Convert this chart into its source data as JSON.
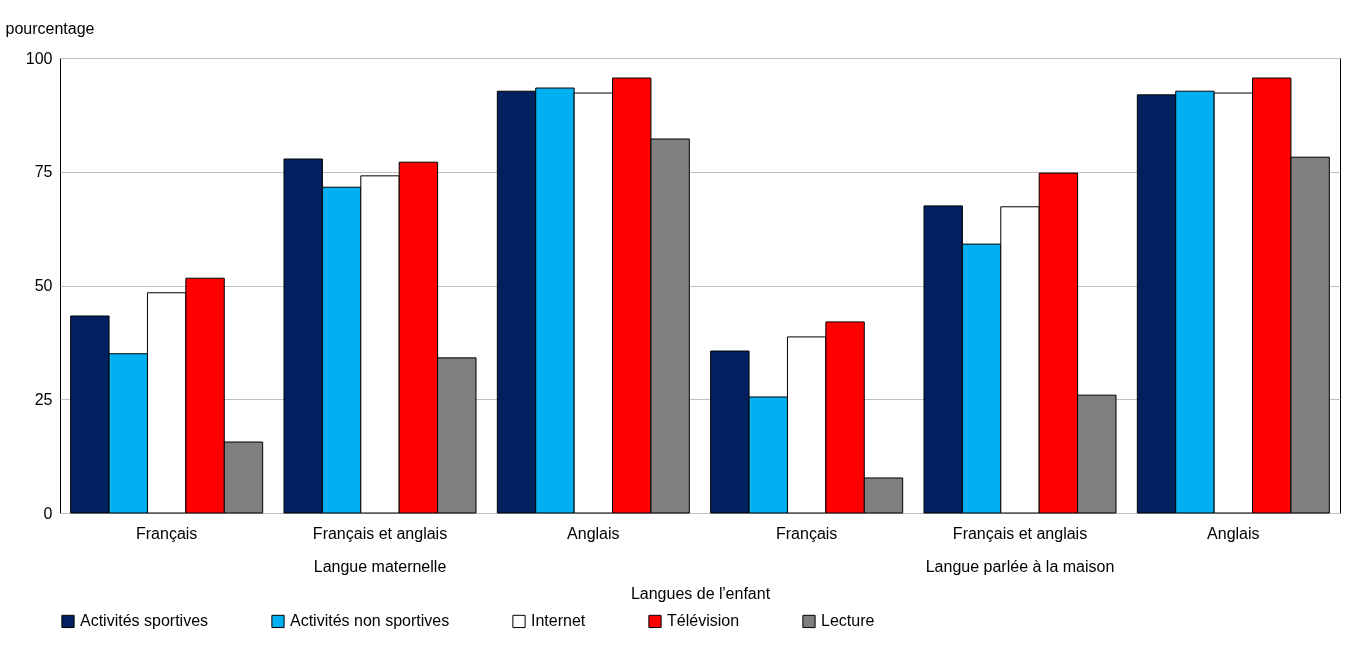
{
  "chart_data": {
    "type": "bar",
    "xlabel": "Langues de l'enfant",
    "ylabel": "pourcentage",
    "categories": [
      "Français",
      "Français et anglais",
      "Anglais",
      "Français",
      "Français et anglais",
      "Anglais"
    ],
    "annotations": [
      "Langue maternelle",
      "Langue parlée à la maison"
    ],
    "series": [
      {
        "name": "Activités sportives",
        "color": "#002060",
        "values": [
          43.3,
          77.8,
          92.7,
          35.6,
          67.5,
          91.9
        ]
      },
      {
        "name": "Activités non sportives",
        "color": "#00b0f0",
        "values": [
          35.0,
          71.6,
          93.4,
          25.5,
          59.1,
          92.7
        ]
      },
      {
        "name": "Internet",
        "color": "#ffffff",
        "values": [
          48.4,
          74.1,
          92.3,
          38.7,
          67.3,
          92.3
        ]
      },
      {
        "name": "Télévision",
        "color": "#ff0000",
        "values": [
          51.6,
          77.1,
          95.6,
          42.0,
          74.7,
          95.6
        ]
      },
      {
        "name": "Lecture",
        "color": "#7f7f7f",
        "values": [
          15.6,
          34.1,
          82.2,
          7.7,
          25.9,
          78.2
        ]
      }
    ],
    "ylim": [
      0,
      100
    ],
    "yticks": [
      0,
      25,
      50,
      75,
      100
    ],
    "grid": "y",
    "legend": "bottom"
  }
}
